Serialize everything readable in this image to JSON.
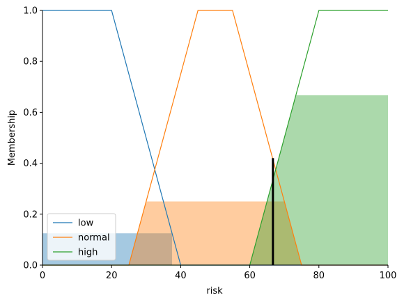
{
  "chart_data": {
    "type": "line",
    "xlabel": "risk",
    "ylabel": "Membership",
    "xlim": [
      0,
      100
    ],
    "ylim": [
      0,
      1.0
    ],
    "x_ticks": [
      "0",
      "20",
      "40",
      "60",
      "80",
      "100"
    ],
    "y_ticks": [
      "0.0",
      "0.2",
      "0.4",
      "0.6",
      "0.8",
      "1.0"
    ],
    "x_tick_values": [
      0,
      20,
      40,
      60,
      80,
      100
    ],
    "y_tick_values": [
      0.0,
      0.2,
      0.4,
      0.6,
      0.8,
      1.0
    ],
    "legend_position": "bottom-left",
    "series": [
      {
        "name": "low",
        "color": "#1f77b4",
        "x": [
          0,
          20,
          40,
          100
        ],
        "y": [
          1,
          1,
          0,
          0
        ]
      },
      {
        "name": "normal",
        "color": "#ff7f0e",
        "x": [
          0,
          25,
          45,
          55,
          75,
          100
        ],
        "y": [
          0,
          0,
          1,
          1,
          0,
          0
        ]
      },
      {
        "name": "high",
        "color": "#2ca02c",
        "x": [
          0,
          60,
          80,
          100
        ],
        "y": [
          0,
          0,
          1,
          1
        ]
      }
    ],
    "activations": [
      {
        "series": "low",
        "color": "#1f77b4",
        "opacity": 0.4,
        "x": [
          0,
          37.5,
          37.5,
          0
        ],
        "y": [
          0.125,
          0.125,
          0,
          0
        ]
      },
      {
        "series": "normal",
        "color": "#ff7f0e",
        "opacity": 0.4,
        "x": [
          25,
          30,
          70,
          75,
          25
        ],
        "y": [
          0,
          0.25,
          0.25,
          0,
          0
        ]
      },
      {
        "series": "high",
        "color": "#2ca02c",
        "opacity": 0.4,
        "x": [
          60,
          73.3,
          100,
          100,
          60
        ],
        "y": [
          0,
          0.667,
          0.667,
          0,
          0
        ]
      }
    ],
    "crisp_output": {
      "x": 66.7,
      "y": 0.42,
      "color": "#000000"
    }
  }
}
